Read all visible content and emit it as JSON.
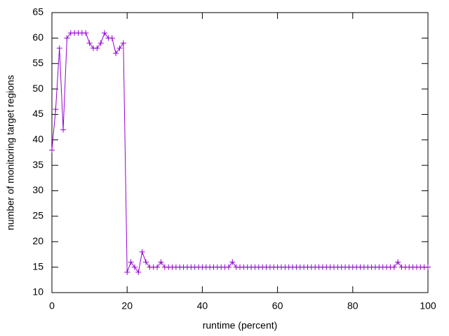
{
  "chart_data": {
    "type": "line",
    "xlabel": "runtime (percent)",
    "ylabel": "number of monitoring target regions",
    "x": [
      0,
      1,
      2,
      3,
      4,
      5,
      6,
      7,
      8,
      9,
      10,
      11,
      12,
      13,
      14,
      15,
      16,
      17,
      18,
      19,
      20,
      21,
      22,
      23,
      24,
      25,
      26,
      27,
      28,
      29,
      30,
      31,
      32,
      33,
      34,
      35,
      36,
      37,
      38,
      39,
      40,
      41,
      42,
      43,
      44,
      45,
      46,
      47,
      48,
      49,
      50,
      51,
      52,
      53,
      54,
      55,
      56,
      57,
      58,
      59,
      60,
      61,
      62,
      63,
      64,
      65,
      66,
      67,
      68,
      69,
      70,
      71,
      72,
      73,
      74,
      75,
      76,
      77,
      78,
      79,
      80,
      81,
      82,
      83,
      84,
      85,
      86,
      87,
      88,
      89,
      90,
      91,
      92,
      93,
      94,
      95,
      96,
      97,
      98,
      99,
      100
    ],
    "series": [
      {
        "color": "#9400d3",
        "values": [
          38,
          46,
          58,
          42,
          60,
          61,
          61,
          61,
          61,
          61,
          59,
          58,
          58,
          59,
          61,
          60,
          60,
          57,
          58,
          59,
          14,
          16,
          15,
          14,
          18,
          16,
          15,
          15,
          15,
          16,
          15,
          15,
          15,
          15,
          15,
          15,
          15,
          15,
          15,
          15,
          15,
          15,
          15,
          15,
          15,
          15,
          15,
          15,
          16,
          15,
          15,
          15,
          15,
          15,
          15,
          15,
          15,
          15,
          15,
          15,
          15,
          15,
          15,
          15,
          15,
          15,
          15,
          15,
          15,
          15,
          15,
          15,
          15,
          15,
          15,
          15,
          15,
          15,
          15,
          15,
          15,
          15,
          15,
          15,
          15,
          15,
          15,
          15,
          15,
          15,
          15,
          15,
          16,
          15,
          15,
          15,
          15,
          15,
          15,
          15,
          15
        ]
      }
    ],
    "xlim": [
      0,
      100
    ],
    "ylim": [
      10,
      65
    ],
    "xticks": [
      0,
      20,
      40,
      60,
      80,
      100
    ],
    "yticks": [
      10,
      15,
      20,
      25,
      30,
      35,
      40,
      45,
      50,
      55,
      60,
      65
    ]
  }
}
